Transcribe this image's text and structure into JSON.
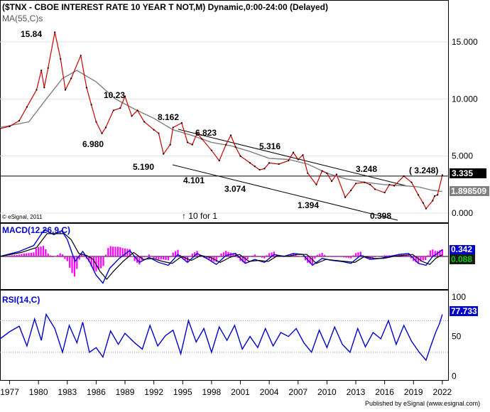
{
  "header": {
    "title": "($TNX - CBOE INTEREST RATE 10 YEAR T NOT,M) Dynamic,0:00-24:00 (Delayed)",
    "ma_label": "MA(55,C)s",
    "copyright": "© eSignal, 2011",
    "note": "↑ 10 for 1"
  },
  "footer": {
    "published": "Published by eSignal (www.esignal.com)"
  },
  "chart_data": [
    {
      "type": "line",
      "panel": "price",
      "title": "($TNX - CBOE INTEREST RATE 10 YEAR T NOT,M) Dynamic,0:00-24:00 (Delayed)",
      "ylim": [
        -0.8,
        18.6
      ],
      "y_ticks": [
        "15.000",
        "10.000",
        "5.000",
        "0.000"
      ],
      "y_tick_values": [
        15,
        10,
        5,
        0
      ],
      "x_ticks": [
        "1977",
        "1980",
        "1983",
        "1986",
        "1989",
        "1992",
        "1995",
        "1998",
        "2001",
        "2004",
        "2007",
        "2010",
        "2013",
        "2016",
        "2019",
        "2022"
      ],
      "xlim": [
        1976,
        2022.6
      ],
      "series": [
        {
          "name": "Price",
          "color": "#cc0000",
          "x": [
            1976.0,
            1977.0,
            1978.0,
            1978.8,
            1979.8,
            1980.3,
            1980.6,
            1981.0,
            1981.7,
            1982.3,
            1982.8,
            1983.4,
            1984.4,
            1985.0,
            1985.5,
            1986.0,
            1986.6,
            1987.0,
            1987.8,
            1988.5,
            1989.0,
            1989.7,
            1990.3,
            1991.0,
            1992.0,
            1992.5,
            1993.0,
            1993.7,
            1994.0,
            1994.9,
            1995.5,
            1996.0,
            1996.5,
            1997.0,
            1998.0,
            1998.8,
            1999.5,
            2000.0,
            2000.5,
            2001.0,
            2002.0,
            2002.5,
            2003.0,
            2003.5,
            2004.0,
            2005.0,
            2006.0,
            2006.5,
            2007.0,
            2007.5,
            2008.0,
            2008.9,
            2009.5,
            2010.0,
            2010.5,
            2011.0,
            2011.9,
            2012.5,
            2013.0,
            2013.9,
            2014.5,
            2015.0,
            2016.0,
            2016.5,
            2017.0,
            2018.0,
            2018.8,
            2019.5,
            2020.0,
            2020.3,
            2021.0,
            2021.2,
            2021.5,
            2022.0
          ],
          "values": [
            7.4,
            7.6,
            8.1,
            9.3,
            10.8,
            12.5,
            11.0,
            12.7,
            15.84,
            13.5,
            10.8,
            11.8,
            13.8,
            11.0,
            9.5,
            8.0,
            6.98,
            7.5,
            9.0,
            9.2,
            10.23,
            8.5,
            9.0,
            8.0,
            7.3,
            7.0,
            5.19,
            6.0,
            7.5,
            7.9,
            6.2,
            6.0,
            7.0,
            6.5,
            5.5,
            4.6,
            6.0,
            6.823,
            5.8,
            5.0,
            4.4,
            4.101,
            3.8,
            3.9,
            4.4,
            4.3,
            4.6,
            5.316,
            4.7,
            5.1,
            3.5,
            2.5,
            3.7,
            3.5,
            2.8,
            3.4,
            1.394,
            2.0,
            2.6,
            2.7,
            2.5,
            2.1,
            1.8,
            2.5,
            2.4,
            3.248,
            2.7,
            1.6,
            0.9,
            0.398,
            1.1,
            1.5,
            1.6,
            3.335
          ]
        },
        {
          "name": "MA(55,C)s",
          "color": "#808080",
          "x": [
            1976.0,
            1979.0,
            1981.0,
            1982.5,
            1984.0,
            1986.0,
            1988.0,
            1990.0,
            1992.0,
            1994.0,
            1996.0,
            1998.0,
            2000.0,
            2002.0,
            2004.0,
            2006.0,
            2008.0,
            2010.0,
            2012.0,
            2014.0,
            2016.0,
            2018.0,
            2019.5,
            2021.0,
            2022.0
          ],
          "values": [
            7.5,
            8.0,
            10.2,
            11.8,
            12.5,
            11.5,
            10.0,
            9.1,
            8.3,
            7.3,
            6.8,
            6.2,
            5.9,
            5.4,
            4.8,
            4.7,
            4.3,
            3.5,
            3.0,
            2.7,
            2.5,
            2.4,
            2.3,
            2.0,
            1.898509
          ]
        }
      ],
      "annotations": [
        "15.84",
        "10.23",
        "8.162",
        "6.823",
        "5.316",
        "3.248",
        "6.980",
        "5.190",
        "4.101",
        "3.074",
        "1.394",
        "0.398",
        "( 3.248)"
      ],
      "price_labels": {
        "last": "3.335",
        "ma": "1.898509"
      },
      "horizontal_line": 3.248
    },
    {
      "type": "line",
      "panel": "macd",
      "title": "MACD(12,26,9,C)",
      "ylim": [
        -1.65,
        1.65
      ],
      "x_ticks": [
        "1977",
        "1980",
        "1983",
        "1986",
        "1989",
        "1992",
        "1995",
        "1998",
        "2001",
        "2004",
        "2007",
        "2010",
        "2013",
        "2016",
        "2019",
        "2022"
      ],
      "series": [
        {
          "name": "MACD",
          "color": "#0000cc",
          "x": [
            1976.0,
            1978.0,
            1979.5,
            1980.6,
            1981.6,
            1982.4,
            1983.0,
            1983.8,
            1984.6,
            1985.3,
            1986.0,
            1986.7,
            1987.4,
            1988.4,
            1989.5,
            1990.5,
            1991.5,
            1992.5,
            1993.5,
            1994.5,
            1995.5,
            1996.5,
            1997.5,
            1998.5,
            1999.5,
            2000.5,
            2001.5,
            2002.5,
            2003.5,
            2004.5,
            2005.5,
            2006.5,
            2007.5,
            2008.5,
            2009.5,
            2010.5,
            2011.5,
            2012.5,
            2013.5,
            2014.5,
            2015.5,
            2016.5,
            2017.5,
            2018.5,
            2019.5,
            2020.3,
            2021.0,
            2021.5,
            2022.0
          ],
          "values": [
            0.0,
            0.25,
            0.55,
            1.35,
            1.1,
            1.3,
            0.85,
            -0.25,
            0.25,
            -0.25,
            -0.95,
            -1.35,
            -0.6,
            -0.1,
            0.3,
            -0.3,
            -0.05,
            -0.3,
            -0.45,
            0.1,
            -0.3,
            0.15,
            -0.1,
            -0.4,
            0.05,
            0.15,
            -0.35,
            -0.15,
            -0.3,
            0.1,
            0.0,
            0.15,
            0.1,
            -0.45,
            -0.1,
            -0.2,
            -0.25,
            -0.35,
            0.05,
            -0.15,
            -0.1,
            0.0,
            0.1,
            0.15,
            -0.35,
            -0.45,
            0.0,
            0.15,
            0.342
          ]
        },
        {
          "name": "Signal",
          "color": "#000000",
          "x": [
            1976.0,
            1978.2,
            1979.8,
            1980.9,
            1981.9,
            1982.7,
            1983.4,
            1984.2,
            1985.0,
            1985.7,
            1986.4,
            1987.1,
            1987.8,
            1988.8,
            1989.9,
            1990.9,
            1991.9,
            1992.9,
            1993.9,
            1994.9,
            1995.9,
            1996.9,
            1997.9,
            1998.9,
            1999.9,
            2000.9,
            2001.9,
            2002.9,
            2003.9,
            2004.9,
            2005.9,
            2006.9,
            2007.9,
            2008.9,
            2009.9,
            2010.9,
            2011.9,
            2012.9,
            2013.9,
            2014.9,
            2015.9,
            2016.9,
            2017.9,
            2018.9,
            2019.9,
            2020.7,
            2021.3,
            2022.0
          ],
          "values": [
            0.0,
            0.2,
            0.45,
            1.15,
            1.15,
            1.15,
            0.85,
            0.15,
            0.05,
            -0.15,
            -0.75,
            -1.15,
            -0.75,
            -0.25,
            0.2,
            -0.15,
            -0.1,
            -0.25,
            -0.35,
            0.0,
            -0.2,
            0.05,
            -0.05,
            -0.3,
            -0.05,
            0.1,
            -0.25,
            -0.2,
            -0.25,
            0.05,
            0.0,
            0.1,
            0.1,
            -0.35,
            -0.15,
            -0.2,
            -0.25,
            -0.3,
            0.0,
            -0.1,
            -0.1,
            0.0,
            0.05,
            0.1,
            -0.25,
            -0.4,
            -0.1,
            0.088
          ]
        }
      ],
      "histogram_color": "#ff00ff",
      "price_labels": {
        "macd": "0.342",
        "signal": "0.088"
      }
    },
    {
      "type": "line",
      "panel": "rsi",
      "title": "RSI(14,C)",
      "ylim": [
        -5,
        108
      ],
      "y_ticks": [
        "100",
        "50",
        "0"
      ],
      "y_tick_values": [
        100,
        50,
        0
      ],
      "guides": [
        70,
        30
      ],
      "x_ticks": [
        "1977",
        "1980",
        "1983",
        "1986",
        "1989",
        "1992",
        "1995",
        "1998",
        "2001",
        "2004",
        "2007",
        "2010",
        "2013",
        "2016",
        "2019",
        "2022"
      ],
      "series": [
        {
          "name": "RSI",
          "color": "#0000cc",
          "x": [
            1976.0,
            1977.0,
            1978.0,
            1978.8,
            1979.6,
            1980.3,
            1980.8,
            1981.7,
            1982.5,
            1983.2,
            1984.0,
            1984.6,
            1985.3,
            1986.0,
            1986.7,
            1987.5,
            1988.3,
            1989.0,
            1990.0,
            1990.8,
            1991.6,
            1992.4,
            1993.2,
            1994.0,
            1994.8,
            1995.6,
            1996.4,
            1997.2,
            1998.0,
            1998.8,
            1999.6,
            2000.4,
            2001.2,
            2002.0,
            2002.8,
            2003.6,
            2004.4,
            2005.2,
            2006.0,
            2006.8,
            2007.6,
            2008.4,
            2009.2,
            2010.0,
            2010.8,
            2011.6,
            2012.4,
            2013.2,
            2014.0,
            2014.8,
            2015.6,
            2016.4,
            2017.2,
            2018.0,
            2018.8,
            2019.6,
            2020.3,
            2020.8,
            2021.3,
            2021.7,
            2022.0
          ],
          "values": [
            47,
            56,
            63,
            38,
            72,
            45,
            78,
            60,
            30,
            64,
            42,
            68,
            30,
            36,
            24,
            57,
            40,
            54,
            42,
            34,
            64,
            38,
            51,
            58,
            28,
            70,
            43,
            60,
            30,
            62,
            45,
            64,
            34,
            50,
            36,
            60,
            38,
            55,
            50,
            60,
            42,
            30,
            58,
            36,
            62,
            40,
            30,
            60,
            37,
            55,
            47,
            70,
            40,
            64,
            44,
            30,
            20,
            38,
            55,
            66,
            77.733
          ]
        }
      ],
      "price_labels": {
        "last": "77.733"
      }
    }
  ]
}
